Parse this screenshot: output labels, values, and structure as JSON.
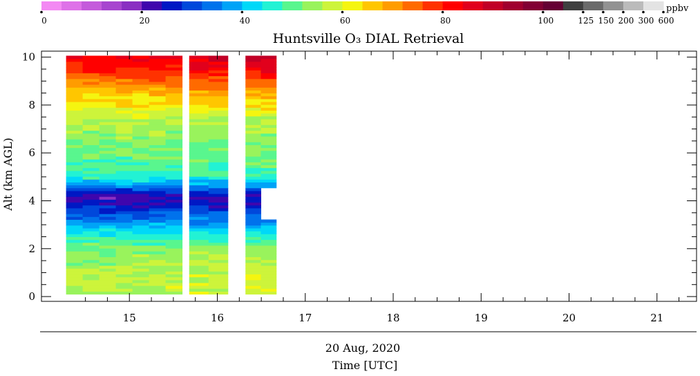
{
  "chart_data": {
    "type": "heatmap",
    "title": "Huntsville O₃ DIAL Retrieval",
    "xlabel": "Time [UTC]",
    "xlabel_date": "20 Aug, 2020",
    "ylabel": "Alt (km AGL)",
    "xlim": [
      14.0,
      21.45
    ],
    "ylim": [
      -0.2,
      10.25
    ],
    "x_ticks": [
      "15",
      "16",
      "17",
      "18",
      "19",
      "20",
      "21"
    ],
    "y_ticks": [
      "0",
      "2",
      "4",
      "6",
      "8",
      "10"
    ],
    "colorbar": {
      "unit": "ppbv",
      "tick_labels": [
        "0",
        "20",
        "40",
        "60",
        "80",
        "100",
        "125",
        "150",
        "200",
        "300",
        "600"
      ],
      "colors": [
        "#f389f3",
        "#de71e8",
        "#c45bdb",
        "#a745cf",
        "#8a2fc2",
        "#3f06ad",
        "#0018c4",
        "#0048db",
        "#0072ec",
        "#00a3f7",
        "#00d8f8",
        "#22f2d4",
        "#59f68e",
        "#99f35c",
        "#cdf43b",
        "#f5f510",
        "#ffc600",
        "#ff9c00",
        "#ff6a00",
        "#ff3200",
        "#ff0000",
        "#e1001c",
        "#c10026",
        "#a0002e",
        "#820033",
        "#650033",
        "#3f3f3f",
        "#6a6a6a",
        "#929292",
        "#bbbbbb",
        "#e3e3e3"
      ]
    },
    "segments": [
      {
        "start": 14.28,
        "end": 15.6,
        "alt_bottom": 0.1,
        "alt_top": 10.0
      },
      {
        "start": 15.68,
        "end": 16.12,
        "alt_bottom": 0.1,
        "alt_top": 10.0
      },
      {
        "start": 16.32,
        "end": 16.67,
        "alt_bottom": 0.1,
        "alt_top": 10.0,
        "data_gap": {
          "start": 16.5,
          "alt_bottom": 3.2,
          "alt_top": 4.6
        }
      }
    ],
    "profile_ppbv": [
      {
        "alt": 0.0,
        "ppbv": 54
      },
      {
        "alt": 0.5,
        "ppbv": 56
      },
      {
        "alt": 1.0,
        "ppbv": 55
      },
      {
        "alt": 1.6,
        "ppbv": 53
      },
      {
        "alt": 2.2,
        "ppbv": 50
      },
      {
        "alt": 2.7,
        "ppbv": 44
      },
      {
        "alt": 3.0,
        "ppbv": 38
      },
      {
        "alt": 3.4,
        "ppbv": 32
      },
      {
        "alt": 3.8,
        "ppbv": 25
      },
      {
        "alt": 4.1,
        "ppbv": 22
      },
      {
        "alt": 4.4,
        "ppbv": 28
      },
      {
        "alt": 4.7,
        "ppbv": 38
      },
      {
        "alt": 5.0,
        "ppbv": 47
      },
      {
        "alt": 5.5,
        "ppbv": 50
      },
      {
        "alt": 6.0,
        "ppbv": 51
      },
      {
        "alt": 6.5,
        "ppbv": 53
      },
      {
        "alt": 7.0,
        "ppbv": 55
      },
      {
        "alt": 7.5,
        "ppbv": 58
      },
      {
        "alt": 8.0,
        "ppbv": 62
      },
      {
        "alt": 8.5,
        "ppbv": 66
      },
      {
        "alt": 9.0,
        "ppbv": 72
      },
      {
        "alt": 9.5,
        "ppbv": 78
      },
      {
        "alt": 10.0,
        "ppbv": 82
      }
    ],
    "grid": false
  }
}
